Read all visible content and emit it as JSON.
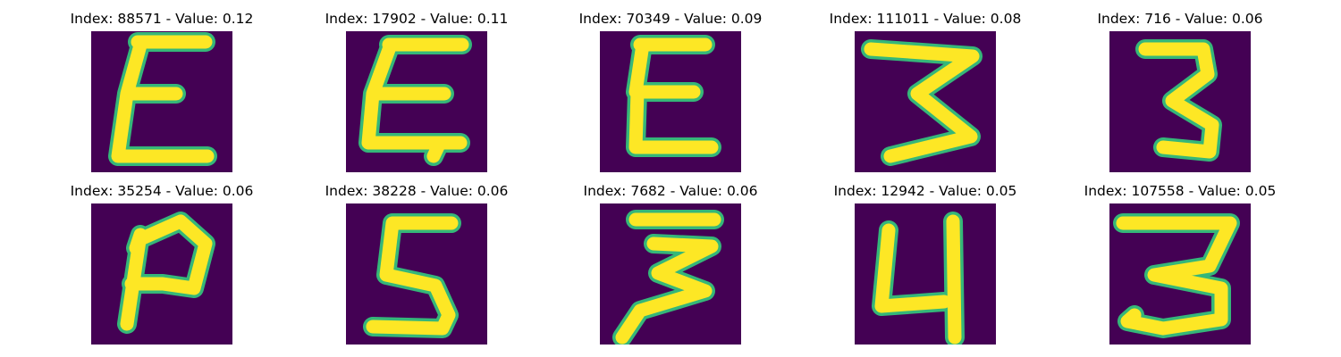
{
  "colors": {
    "background": "#440154",
    "stroke": "#fde725",
    "edge": "#35b779"
  },
  "panels": [
    {
      "title": "Index: 88571 - Value: 0.12"
    },
    {
      "title": "Index: 17902 - Value: 0.11"
    },
    {
      "title": "Index: 70349 - Value: 0.09"
    },
    {
      "title": "Index: 111011 - Value: 0.08"
    },
    {
      "title": "Index: 716 - Value: 0.06"
    },
    {
      "title": "Index: 35254 - Value: 0.06"
    },
    {
      "title": "Index: 38228 - Value: 0.06"
    },
    {
      "title": "Index: 7682 - Value: 0.06"
    },
    {
      "title": "Index: 12942 - Value: 0.05"
    },
    {
      "title": "Index: 107558 - Value: 0.05"
    }
  ]
}
